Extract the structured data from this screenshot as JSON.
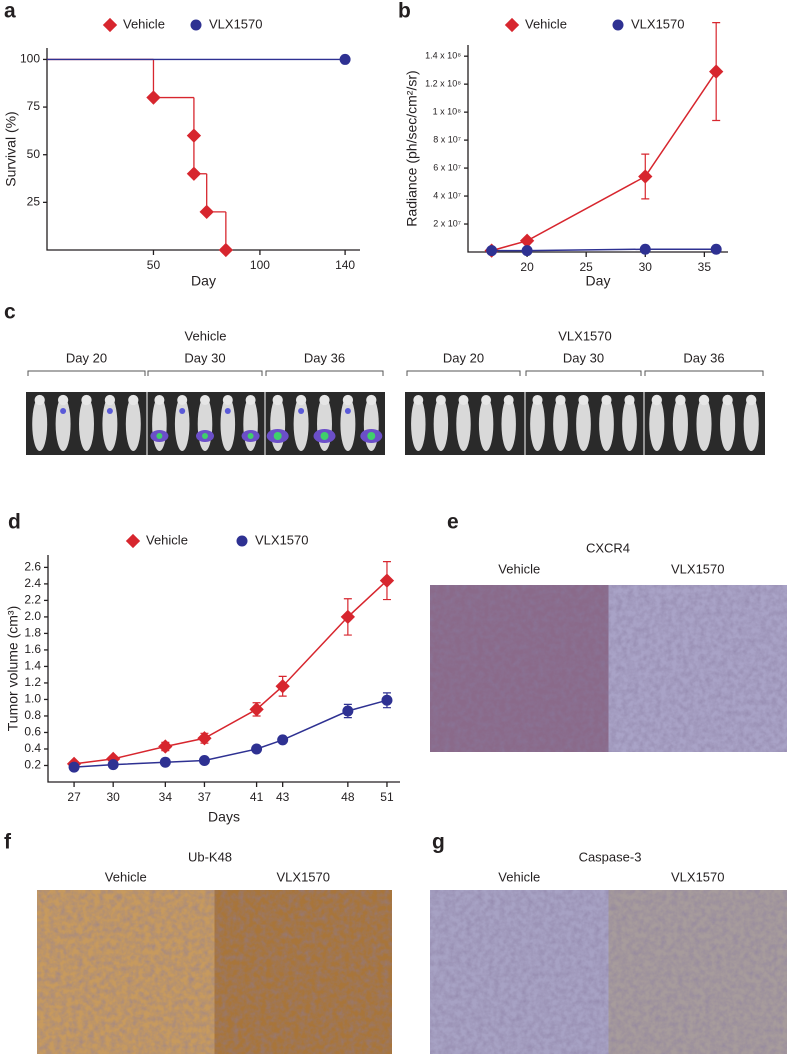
{
  "chart_data": [
    {
      "type": "step",
      "label": "a",
      "xlabel": "Day",
      "ylabel": "Survival (%)",
      "xlim": [
        0,
        147
      ],
      "xticks": [
        50,
        100,
        140
      ],
      "ylim": [
        0,
        106
      ],
      "yticks": [
        25,
        50,
        75,
        100
      ],
      "series": [
        {
          "name": "Vehicle",
          "color": "#d7262e",
          "marker": "diamond",
          "x": [
            0,
            50,
            69,
            69,
            75,
            84
          ],
          "values": [
            100,
            80,
            60,
            40,
            20,
            0
          ]
        },
        {
          "name": "VLX1570",
          "color": "#2e3192",
          "marker": "circle",
          "x": [
            0,
            140
          ],
          "values": [
            100,
            100
          ]
        }
      ]
    },
    {
      "type": "line",
      "label": "b",
      "xlabel": "Day",
      "ylabel": "Radiance (ph/sec/cm²/sr)",
      "xlim": [
        15,
        37
      ],
      "xticks": [
        20,
        25,
        30,
        35
      ],
      "ylim": [
        0,
        148000000
      ],
      "yticks": [
        {
          "value": 20000000,
          "label": "2 x 10⁷"
        },
        {
          "value": 40000000,
          "label": "4 x 10⁷"
        },
        {
          "value": 60000000,
          "label": "6 x 10⁷"
        },
        {
          "value": 80000000,
          "label": "8 x 10⁷"
        },
        {
          "value": 100000000,
          "label": "1 x 10⁸"
        },
        {
          "value": 120000000,
          "label": "1.2 x 10⁸"
        },
        {
          "value": 140000000,
          "label": "1.4 x 10⁸"
        }
      ],
      "x": [
        17,
        20,
        30,
        36
      ],
      "series": [
        {
          "name": "Vehicle",
          "color": "#d7262e",
          "marker": "diamond",
          "values": [
            1000000,
            8000000,
            54000000,
            129000000
          ],
          "errors": [
            0,
            1000000,
            16000000,
            35000000
          ]
        },
        {
          "name": "VLX1570",
          "color": "#2e3192",
          "marker": "circle",
          "values": [
            1000000,
            1000000,
            2000000,
            2000000
          ]
        }
      ]
    },
    {
      "type": "line",
      "label": "d",
      "xlabel": "Days",
      "ylabel": "Tumor volume (cm³)",
      "xlim": [
        25,
        52
      ],
      "xticks": [
        27,
        30,
        34,
        37,
        41,
        43,
        48,
        51
      ],
      "ylim": [
        0,
        2.75
      ],
      "yticks": [
        0.2,
        0.4,
        0.6,
        0.8,
        {
          "value": 1,
          "label": "1.0"
        },
        1.2,
        1.4,
        1.6,
        1.8,
        {
          "value": 2,
          "label": "2.0"
        },
        2.2,
        2.4,
        2.6
      ],
      "x": [
        27,
        30,
        34,
        37,
        41,
        43,
        48,
        51
      ],
      "series": [
        {
          "name": "Vehicle",
          "color": "#d7262e",
          "marker": "diamond",
          "values": [
            0.22,
            0.28,
            0.43,
            0.53,
            0.88,
            1.16,
            2.0,
            2.44
          ],
          "errors": [
            0.02,
            0.03,
            0.05,
            0.06,
            0.08,
            0.12,
            0.22,
            0.23
          ]
        },
        {
          "name": "VLX1570",
          "color": "#2e3192",
          "marker": "circle",
          "values": [
            0.18,
            0.21,
            0.24,
            0.26,
            0.4,
            0.51,
            0.86,
            0.99
          ],
          "errors": [
            0.02,
            0.03,
            0.03,
            0.03,
            0.03,
            0.03,
            0.08,
            0.09
          ]
        }
      ]
    }
  ],
  "image_panels": [
    {
      "label": "c",
      "groups": [
        {
          "title": "Vehicle",
          "days": [
            "Day 20",
            "Day 30",
            "Day 36"
          ]
        },
        {
          "title": "VLX1570",
          "days": [
            "Day 20",
            "Day 30",
            "Day 36"
          ]
        }
      ]
    },
    {
      "label": "e",
      "title": "CXCR4",
      "columns": [
        "Vehicle",
        "VLX1570"
      ]
    },
    {
      "label": "f",
      "title": "Ub-K48",
      "columns": [
        "Vehicle",
        "VLX1570"
      ]
    },
    {
      "label": "g",
      "title": "Caspase-3",
      "columns": [
        "Vehicle",
        "VLX1570"
      ]
    }
  ]
}
